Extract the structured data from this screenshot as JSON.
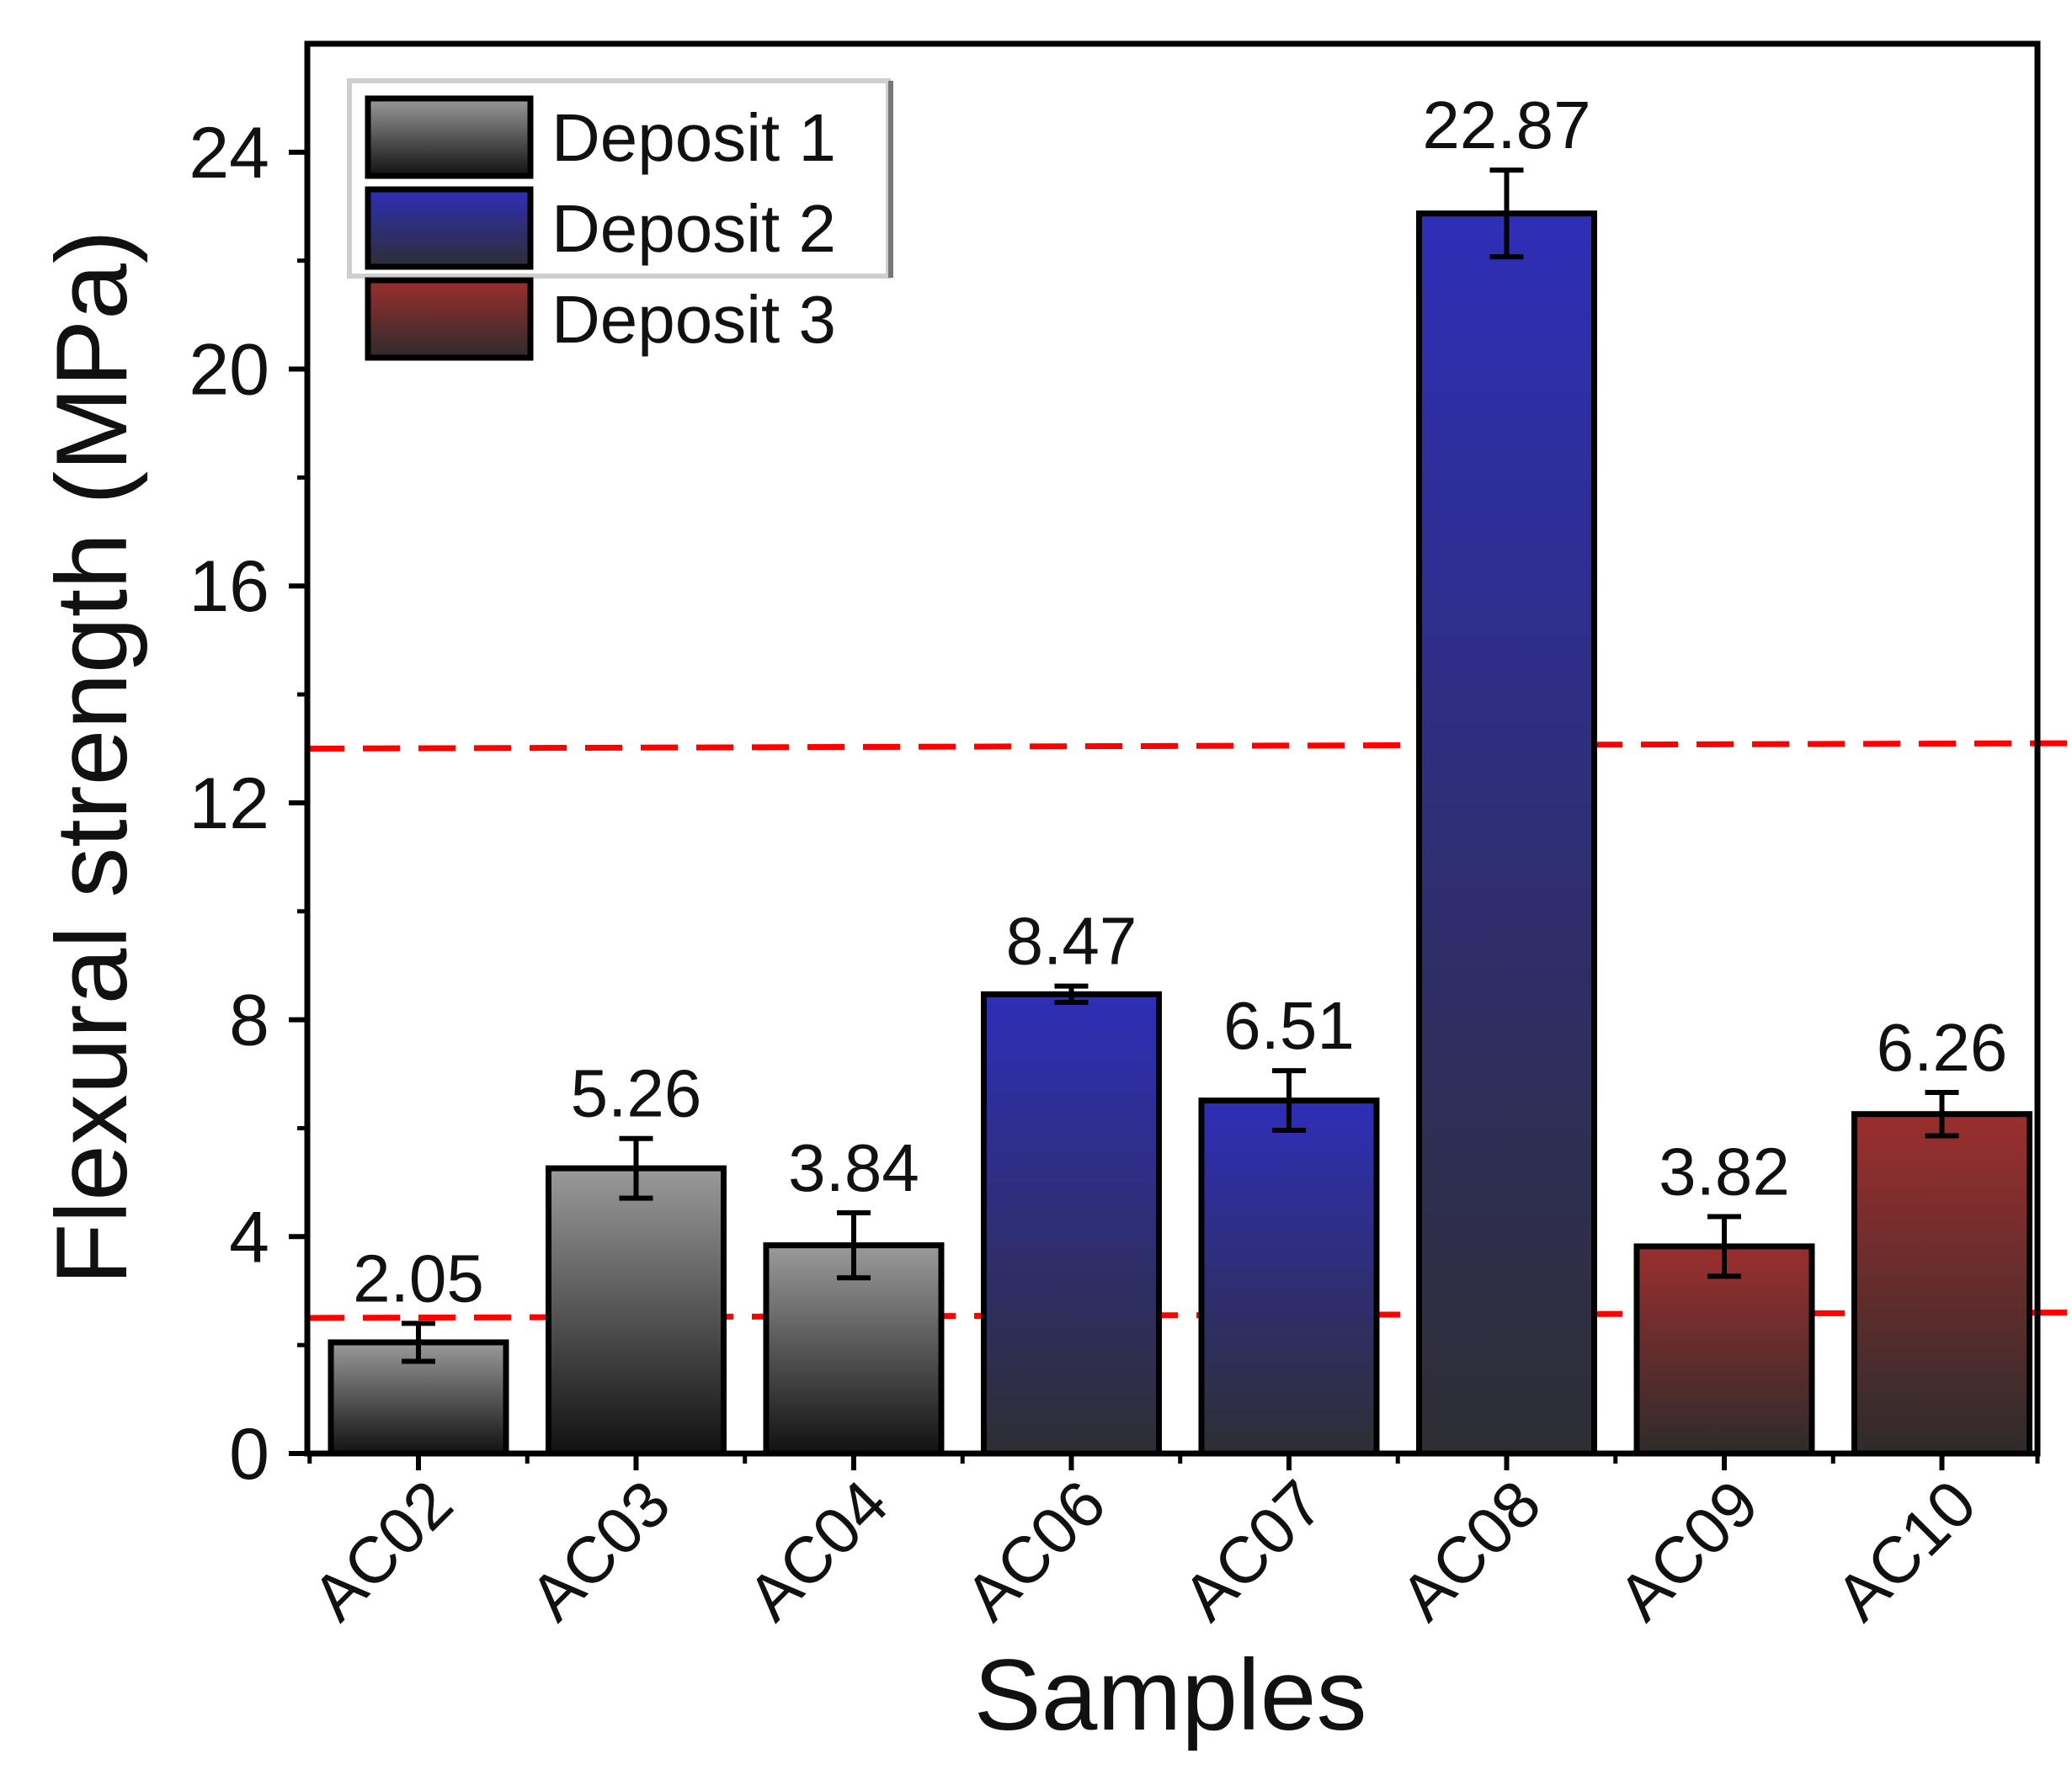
{
  "chart_data": {
    "type": "bar",
    "title": "",
    "xlabel": "Samples",
    "ylabel": "Flexural strength (MPa)",
    "ylim": [
      0,
      26
    ],
    "yticks": [
      0,
      4,
      8,
      12,
      16,
      20,
      24
    ],
    "categories": [
      "AC02",
      "AC03",
      "AC04",
      "AC06",
      "AC07",
      "AC08",
      "AC09",
      "AC10"
    ],
    "values": [
      2.05,
      5.26,
      3.84,
      8.47,
      6.51,
      22.87,
      3.82,
      6.26
    ],
    "value_labels": [
      "2.05",
      "5.26",
      "3.84",
      "8.47",
      "6.51",
      "22.87",
      "3.82",
      "6.26"
    ],
    "errors": [
      0.35,
      0.55,
      0.6,
      0.15,
      0.55,
      0.8,
      0.55,
      0.4
    ],
    "groups": [
      "Deposit 1",
      "Deposit 1",
      "Deposit 1",
      "Deposit 2",
      "Deposit 2",
      "Deposit 2",
      "Deposit 3",
      "Deposit 3"
    ],
    "legend": {
      "position": "top-left",
      "entries": [
        "Deposit 1",
        "Deposit 2",
        "Deposit 3"
      ]
    },
    "reference_lines": [
      {
        "y": 13.0,
        "y_end": 13.1,
        "style": "dashed",
        "color": "#ff0000"
      },
      {
        "y": 2.5,
        "y_end": 2.6,
        "style": "dashed",
        "color": "#ff0000"
      }
    ],
    "colors": {
      "Deposit 1": {
        "top": "#9a9a9a",
        "bottom": "#111111"
      },
      "Deposit 2": {
        "top": "#2e2eb8",
        "bottom": "#2e2e33"
      },
      "Deposit 3": {
        "top": "#9b2e2e",
        "bottom": "#2e2b2b"
      },
      "reference": "#ff0000",
      "axis": "#000000"
    }
  }
}
